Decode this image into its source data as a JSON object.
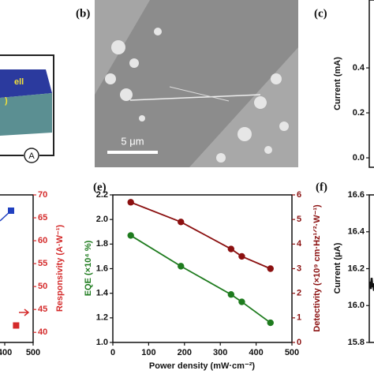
{
  "figure": {
    "panel_labels": [
      "(b)",
      "(c)",
      "(e)",
      "(f)"
    ],
    "schematic_labels": [
      "ell",
      ")"
    ],
    "meter_label": "A",
    "scale_bar": "5 μm"
  },
  "chart_data": [
    {
      "type": "line",
      "x": [
        50,
        190,
        330,
        360,
        440
      ],
      "xlabel": "Power density (mW·cm⁻²)",
      "ylabel": "EQE (×10⁴ %)",
      "y2label": "Detectivity (×10⁹ cm·Hz¹ᐟ²·W⁻¹)",
      "xlim": [
        0,
        500
      ],
      "xticks": [
        0,
        100,
        200,
        300,
        400,
        500
      ],
      "ylim": [
        1,
        2.2
      ],
      "yticks": [
        {
          "value": 1,
          "label": "1.0"
        },
        1.2,
        1.4,
        1.6,
        1.8,
        {
          "value": 2,
          "label": "2.0"
        },
        2.2
      ],
      "y2lim": [
        0,
        6
      ],
      "y2ticks": [
        0,
        1,
        2,
        3,
        4,
        5,
        6
      ],
      "series": [
        {
          "color": "#1e7b1e",
          "values": [
            1.87,
            1.62,
            1.39,
            1.33,
            1.16
          ]
        },
        {
          "color": "#8b1010",
          "axis": "y2",
          "values": [
            5.7,
            4.9,
            3.8,
            3.5,
            3.0
          ]
        }
      ]
    },
    {
      "type": "line",
      "x": [
        440
      ],
      "y2label": "Responsivity (A·W⁻¹)",
      "xlim": [
        0,
        500
      ],
      "xticks": [
        400,
        500
      ],
      "y2lim": [
        37.8,
        70
      ],
      "y2ticks": [
        40,
        45,
        50,
        55,
        60,
        65,
        70
      ],
      "series": [
        {
          "color": "#d42a2a",
          "axis": "y2",
          "values": [
            41.5
          ]
        }
      ]
    },
    {
      "type": "line",
      "ylabel": "Current (mA)",
      "ylim": [
        -0.042,
        0.702
      ],
      "yticks": [
        {
          "value": 0,
          "label": "0.0"
        },
        0.2,
        0.4
      ]
    },
    {
      "type": "line",
      "ylabel": "Current (μA)",
      "ylim": [
        15.8,
        16.6
      ],
      "yticks": [
        15.8,
        {
          "value": 16,
          "label": "16.0"
        },
        16.2,
        16.4,
        16.6
      ],
      "color": "#111111",
      "values": [
        16.13,
        16.09,
        16.15,
        16.1,
        16.12,
        16.08,
        16.11
      ]
    }
  ]
}
